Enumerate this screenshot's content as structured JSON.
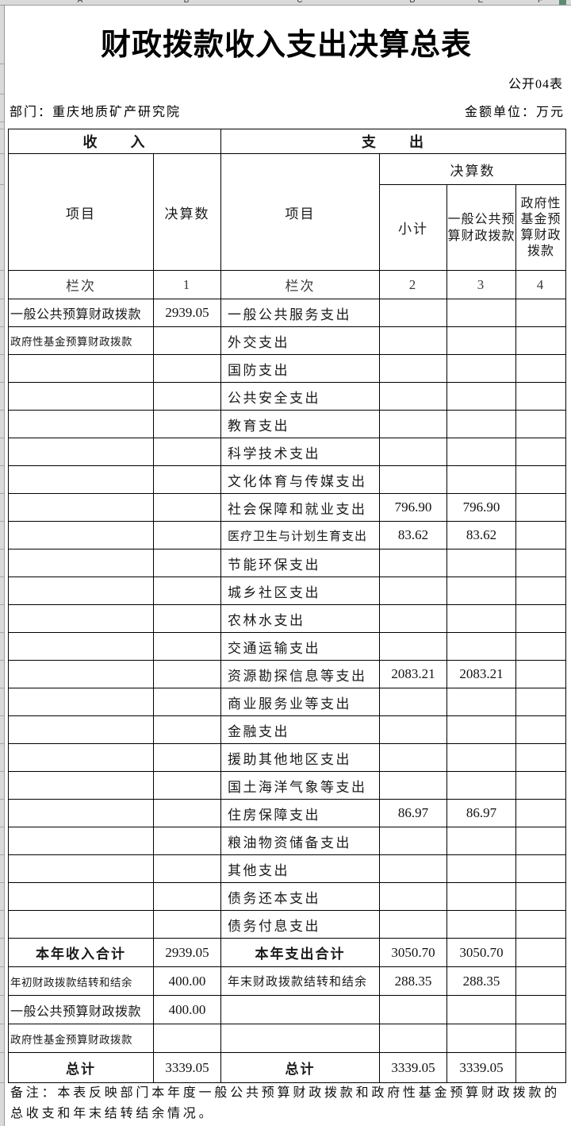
{
  "excel": {
    "columns": [
      "A",
      "B",
      "C",
      "D",
      "E",
      "F"
    ]
  },
  "header": {
    "title": "财政拨款收入支出决算总表",
    "doc_no": "公开04表",
    "department_label": "部门：",
    "department": "重庆地质矿产研究院",
    "unit_label": "金额单位：",
    "unit": "万元"
  },
  "table": {
    "income_header": "收　　入",
    "expense_header": "支　　出",
    "col_item": "项目",
    "col_final": "决算数",
    "col_subtotal": "小计",
    "col_general": "一般公共预算财政拨款",
    "col_fund": "政府性基金预算财政拨款",
    "lanci": "栏次",
    "col_nums": [
      "1",
      "2",
      "3",
      "4"
    ],
    "rows": [
      {
        "in": "一般公共预算财政拨款",
        "iv": "2939.05",
        "ex": "一般公共服务支出",
        "sub": "",
        "gen": "",
        "fund": ""
      },
      {
        "in": "政府性基金预算财政拨款",
        "inSmall": true,
        "iv": "",
        "ex": "外交支出",
        "sub": "",
        "gen": "",
        "fund": ""
      },
      {
        "in": "",
        "iv": "",
        "ex": "国防支出",
        "sub": "",
        "gen": "",
        "fund": ""
      },
      {
        "in": "",
        "iv": "",
        "ex": "公共安全支出",
        "sub": "",
        "gen": "",
        "fund": ""
      },
      {
        "in": "",
        "iv": "",
        "ex": "教育支出",
        "sub": "",
        "gen": "",
        "fund": ""
      },
      {
        "in": "",
        "iv": "",
        "ex": "科学技术支出",
        "sub": "",
        "gen": "",
        "fund": ""
      },
      {
        "in": "",
        "iv": "",
        "ex": "文化体育与传媒支出",
        "sub": "",
        "gen": "",
        "fund": ""
      },
      {
        "in": "",
        "iv": "",
        "ex": "社会保障和就业支出",
        "sub": "796.90",
        "gen": "796.90",
        "fund": ""
      },
      {
        "in": "",
        "iv": "",
        "ex": "医疗卫生与计划生育支出",
        "exSmall": true,
        "sub": "83.62",
        "gen": "83.62",
        "fund": ""
      },
      {
        "in": "",
        "iv": "",
        "ex": "节能环保支出",
        "sub": "",
        "gen": "",
        "fund": ""
      },
      {
        "in": "",
        "iv": "",
        "ex": "城乡社区支出",
        "sub": "",
        "gen": "",
        "fund": ""
      },
      {
        "in": "",
        "iv": "",
        "ex": "农林水支出",
        "sub": "",
        "gen": "",
        "fund": ""
      },
      {
        "in": "",
        "iv": "",
        "ex": "交通运输支出",
        "sub": "",
        "gen": "",
        "fund": ""
      },
      {
        "in": "",
        "iv": "",
        "ex": "资源勘探信息等支出",
        "sub": "2083.21",
        "gen": "2083.21",
        "fund": ""
      },
      {
        "in": "",
        "iv": "",
        "ex": "商业服务业等支出",
        "sub": "",
        "gen": "",
        "fund": ""
      },
      {
        "in": "",
        "iv": "",
        "ex": "金融支出",
        "sub": "",
        "gen": "",
        "fund": ""
      },
      {
        "in": "",
        "iv": "",
        "ex": "援助其他地区支出",
        "sub": "",
        "gen": "",
        "fund": ""
      },
      {
        "in": "",
        "iv": "",
        "ex": "国土海洋气象等支出",
        "sub": "",
        "gen": "",
        "fund": ""
      },
      {
        "in": "",
        "iv": "",
        "ex": "住房保障支出",
        "sub": "86.97",
        "gen": "86.97",
        "fund": ""
      },
      {
        "in": "",
        "iv": "",
        "ex": "粮油物资储备支出",
        "sub": "",
        "gen": "",
        "fund": ""
      },
      {
        "in": "",
        "iv": "",
        "ex": "其他支出",
        "sub": "",
        "gen": "",
        "fund": ""
      },
      {
        "in": "",
        "iv": "",
        "ex": "债务还本支出",
        "sub": "",
        "gen": "",
        "fund": ""
      },
      {
        "in": "",
        "iv": "",
        "ex": "债务付息支出",
        "sub": "",
        "gen": "",
        "fund": ""
      },
      {
        "in": "本年收入合计",
        "bold": true,
        "iv": "2939.05",
        "ex": "本年支出合计",
        "sub": "3050.70",
        "gen": "3050.70",
        "fund": ""
      },
      {
        "in": "年初财政拨款结转和结余",
        "inSmall": true,
        "iv": "400.00",
        "ex": "年末财政拨款结转和结余",
        "exSmall": true,
        "sub": "288.35",
        "gen": "288.35",
        "fund": ""
      },
      {
        "in": "一般公共预算财政拨款",
        "iv": "400.00",
        "ex": "",
        "sub": "",
        "gen": "",
        "fund": ""
      },
      {
        "in": "政府性基金预算财政拨款",
        "inSmall": true,
        "iv": "",
        "ex": "",
        "sub": "",
        "gen": "",
        "fund": ""
      },
      {
        "in": "总计",
        "bold": true,
        "iv": "3339.05",
        "ex": "总计",
        "sub": "3339.05",
        "gen": "3339.05",
        "fund": ""
      }
    ]
  },
  "note": "备注：本表反映部门本年度一般公共预算财政拨款和政府性基金预算财政拨款的总收支和年末结转结余情况。"
}
